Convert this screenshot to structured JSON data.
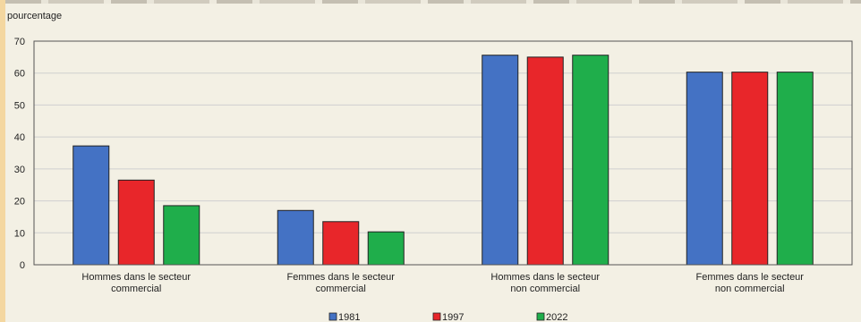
{
  "chart_data": {
    "type": "bar",
    "ylabel": "pourcentage",
    "ylim": [
      0,
      70
    ],
    "yticks": [
      0,
      10,
      20,
      30,
      40,
      50,
      60,
      70
    ],
    "grid": true,
    "legend_position": "bottom",
    "categories": [
      [
        "Hommes dans le secteur",
        "commercial"
      ],
      [
        "Femmes dans le secteur",
        "commercial"
      ],
      [
        "Hommes dans le secteur",
        "non commercial"
      ],
      [
        "Femmes dans le secteur",
        "non commercial"
      ]
    ],
    "series": [
      {
        "name": "1981",
        "color": "#4472c4",
        "values": [
          37.2,
          17.0,
          65.6,
          60.3
        ]
      },
      {
        "name": "1997",
        "color": "#e8262a",
        "values": [
          26.5,
          13.5,
          65.0,
          60.3
        ]
      },
      {
        "name": "2022",
        "color": "#1fae4b",
        "values": [
          18.5,
          10.3,
          65.6,
          60.3
        ]
      }
    ]
  }
}
